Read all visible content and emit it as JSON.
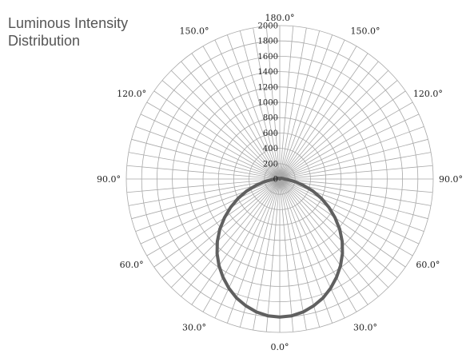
{
  "chart_data": {
    "type": "polar-line",
    "title_lines": [
      "Luminous Intensity",
      "Distribution"
    ],
    "radial_range": [
      0,
      2000
    ],
    "radial_ticks": [
      200,
      400,
      600,
      800,
      1000,
      1200,
      1400,
      1600,
      1800,
      2000
    ],
    "radial_tick_labels": [
      "0",
      "200",
      "400",
      "600",
      "800",
      "1000",
      "1200",
      "1400",
      "1600",
      "1800",
      "2000"
    ],
    "angle_labels": [
      {
        "angle": 0,
        "label": "0.0°",
        "side": "bottom"
      },
      {
        "angle": 30,
        "label": "30.0°",
        "side": "left"
      },
      {
        "angle": 30,
        "label": "30.0°",
        "side": "right"
      },
      {
        "angle": 60,
        "label": "60.0°",
        "side": "left"
      },
      {
        "angle": 60,
        "label": "60.0°",
        "side": "right"
      },
      {
        "angle": 90,
        "label": "90.0°",
        "side": "left"
      },
      {
        "angle": 90,
        "label": "90.0°",
        "side": "right"
      },
      {
        "angle": 120,
        "label": "120.0°",
        "side": "left"
      },
      {
        "angle": 120,
        "label": "120.0°",
        "side": "right"
      },
      {
        "angle": 150,
        "label": "150.0°",
        "side": "left"
      },
      {
        "angle": 150,
        "label": "150.0°",
        "side": "right"
      },
      {
        "angle": 180,
        "label": "180.0°",
        "side": "top"
      }
    ],
    "angle_grid_step_deg": 5,
    "grid": true,
    "series": [
      {
        "color": "#606060",
        "points": [
          {
            "angle": 0,
            "value": 1800
          },
          {
            "angle": 5,
            "value": 1790
          },
          {
            "angle": 10,
            "value": 1760
          },
          {
            "angle": 15,
            "value": 1710
          },
          {
            "angle": 20,
            "value": 1650
          },
          {
            "angle": 25,
            "value": 1570
          },
          {
            "angle": 30,
            "value": 1480
          },
          {
            "angle": 35,
            "value": 1380
          },
          {
            "angle": 40,
            "value": 1270
          },
          {
            "angle": 45,
            "value": 1150
          },
          {
            "angle": 50,
            "value": 1020
          },
          {
            "angle": 55,
            "value": 880
          },
          {
            "angle": 60,
            "value": 740
          },
          {
            "angle": 65,
            "value": 600
          },
          {
            "angle": 70,
            "value": 460
          },
          {
            "angle": 75,
            "value": 320
          },
          {
            "angle": 80,
            "value": 200
          },
          {
            "angle": 85,
            "value": 110
          },
          {
            "angle": 90,
            "value": 60
          },
          {
            "angle": 100,
            "value": 40
          },
          {
            "angle": 120,
            "value": 20
          },
          {
            "angle": 150,
            "value": 10
          },
          {
            "angle": 180,
            "value": 0
          }
        ]
      }
    ]
  }
}
